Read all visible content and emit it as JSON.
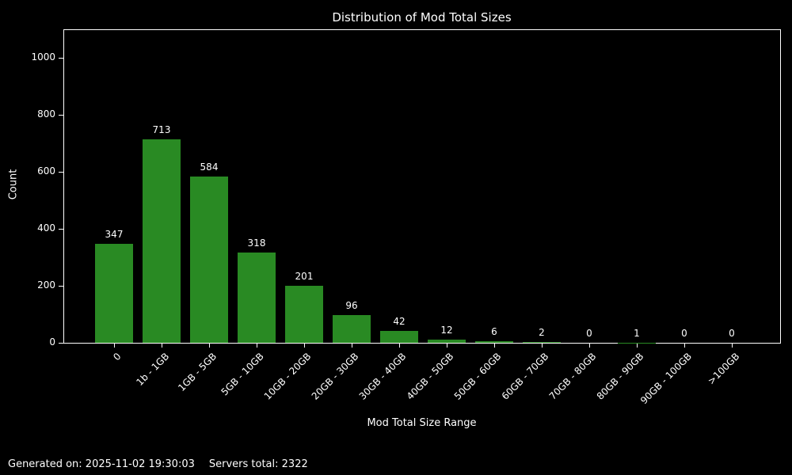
{
  "title": "Distribution of Mod Total Sizes",
  "footer": {
    "generated": "Generated on: 2025-11-02 19:30:03",
    "servers_total": "Servers total: 2322"
  },
  "chart_data": {
    "type": "bar",
    "title": "Distribution of Mod Total Sizes",
    "categories": [
      "0",
      "1b - 1GB",
      "1GB - 5GB",
      "5GB - 10GB",
      "10GB - 20GB",
      "20GB - 30GB",
      "30GB - 40GB",
      "40GB - 50GB",
      "50GB - 60GB",
      "60GB - 70GB",
      "70GB - 80GB",
      "80GB - 90GB",
      "90GB - 100GB",
      ">100GB"
    ],
    "values": [
      347,
      713,
      584,
      318,
      201,
      96,
      42,
      12,
      6,
      2,
      0,
      1,
      0,
      0
    ],
    "xlabel": "Mod Total Size Range",
    "ylabel": "Count",
    "yticks": [
      0,
      200,
      400,
      600,
      800,
      1000
    ],
    "ylim": [
      0,
      1100
    ],
    "bar_color": "#298a23",
    "background_color": "#000000",
    "text_color": "#ffffff",
    "grid": false,
    "legend": "none",
    "value_labels_shown": true
  }
}
